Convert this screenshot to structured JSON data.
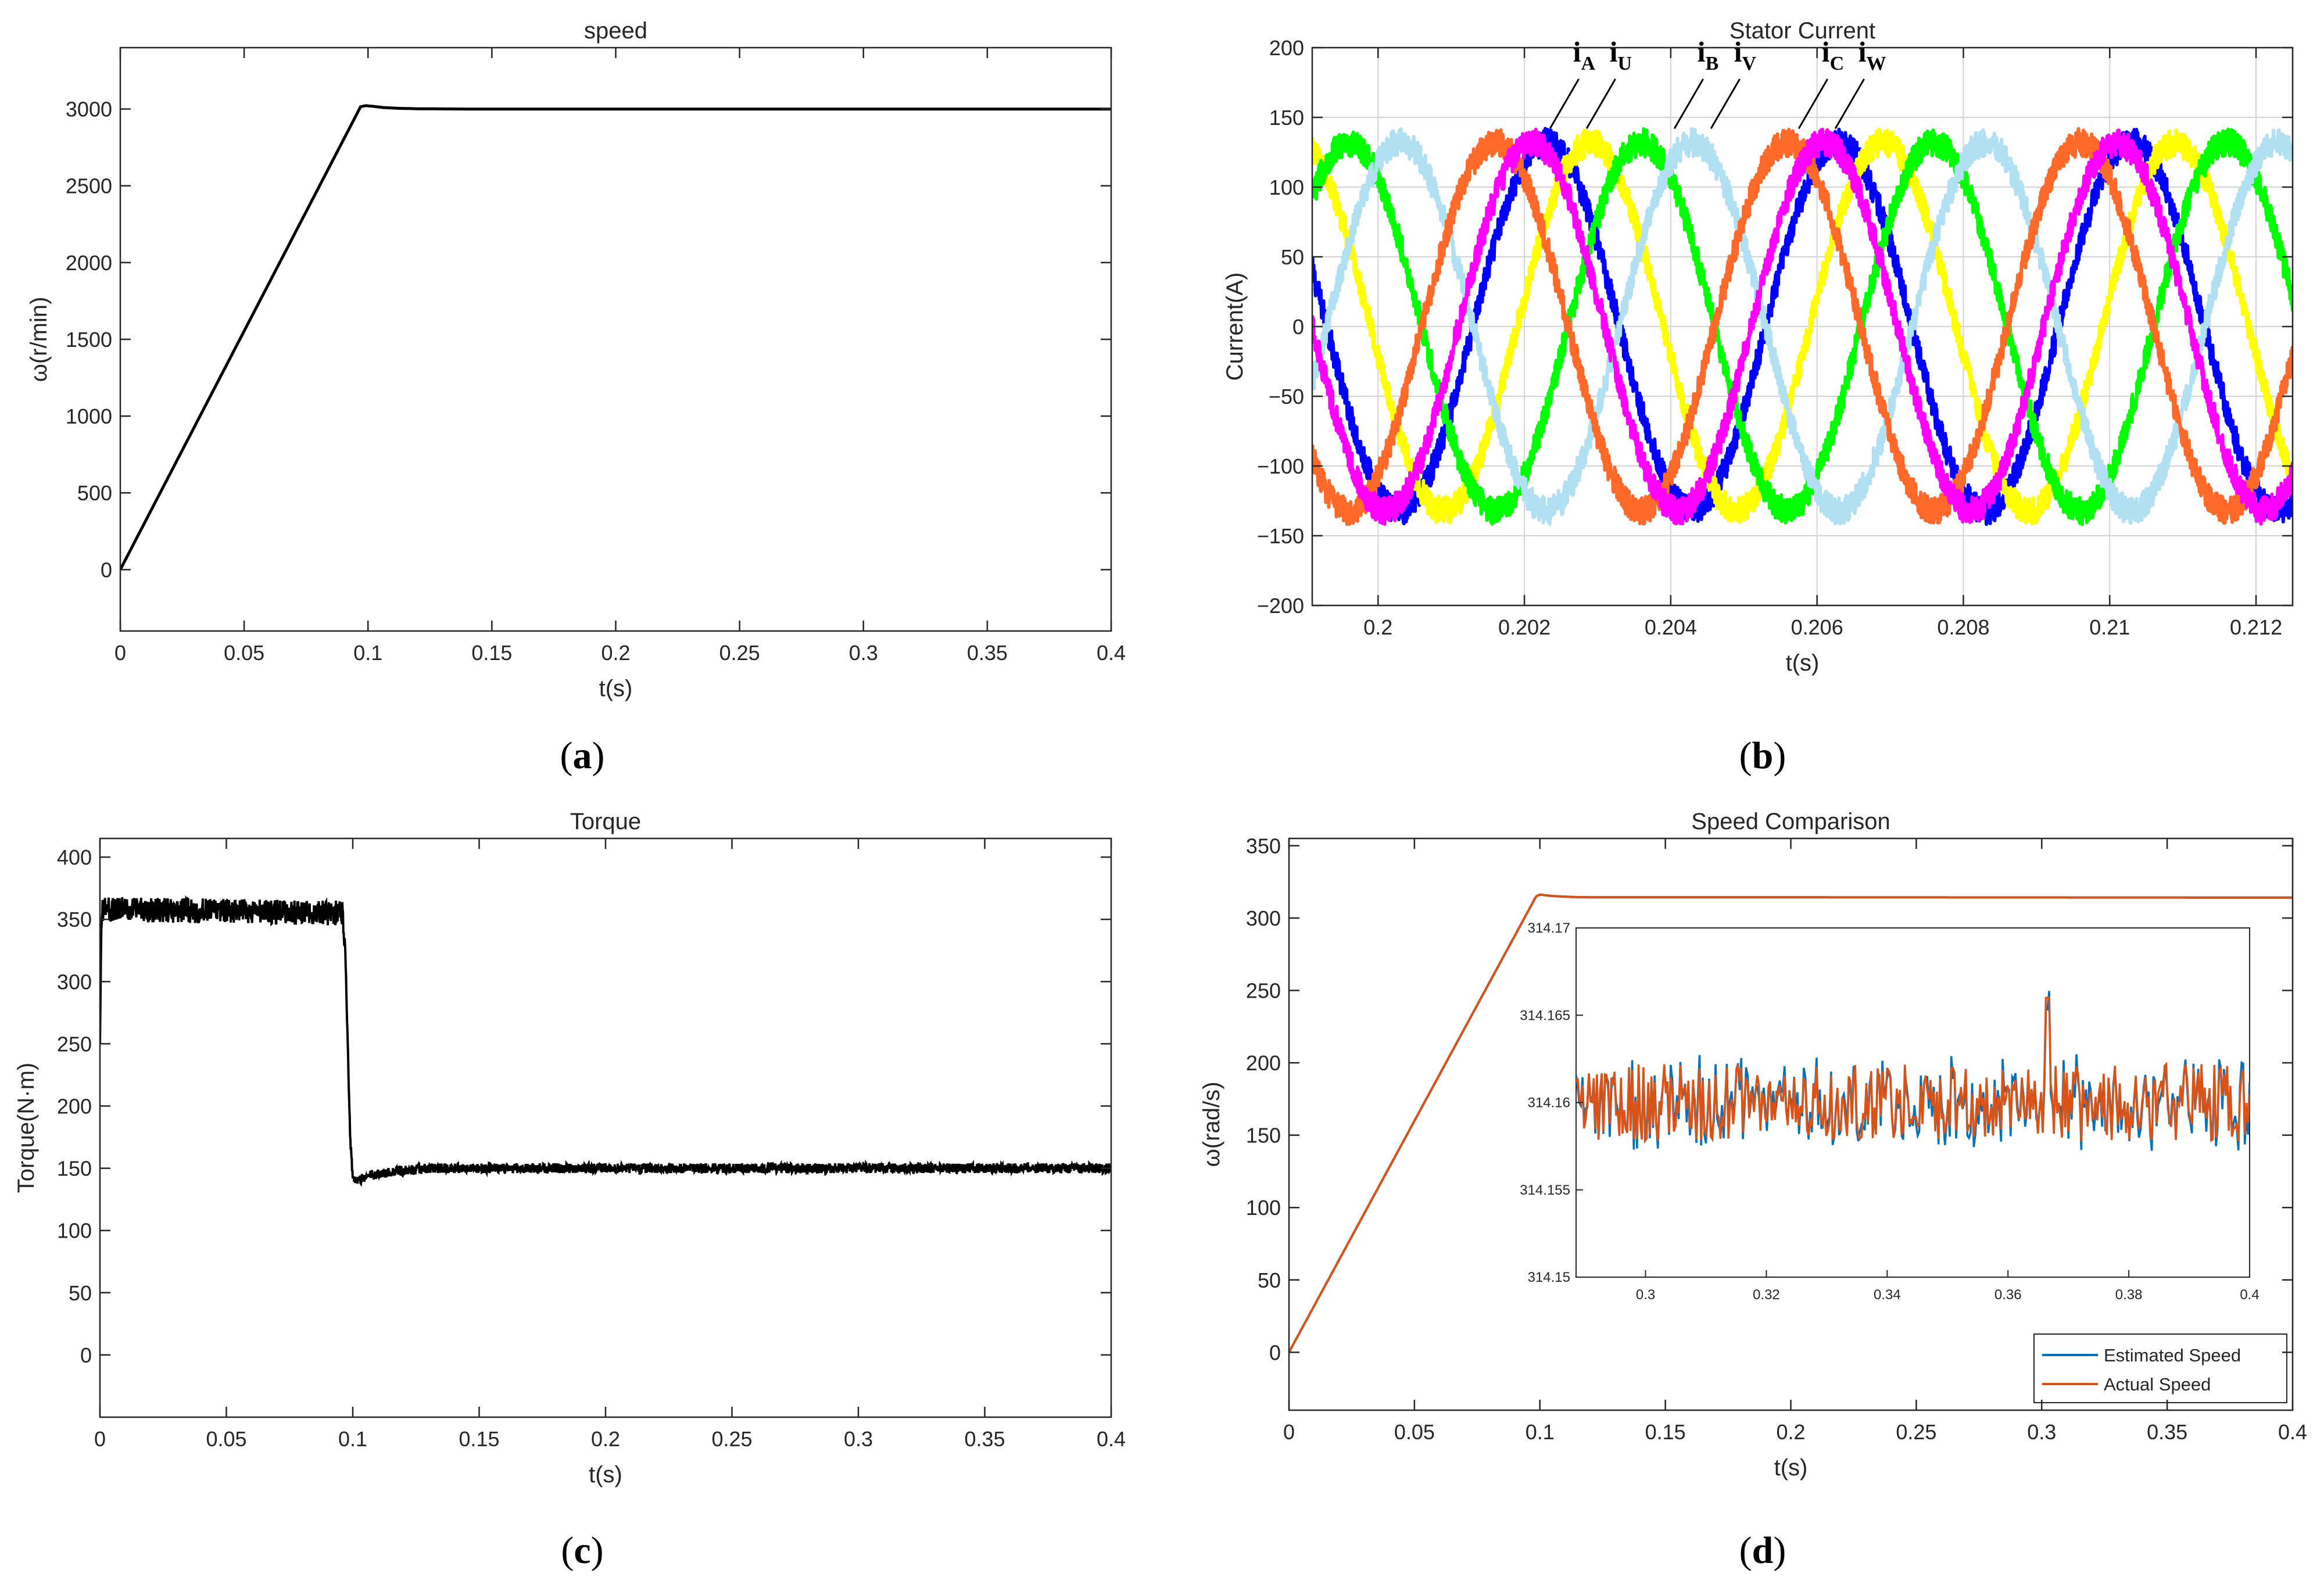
{
  "colors": {
    "axis": "#262626",
    "grid": "#d4d4d4",
    "black_trace": "#000000",
    "iA": "#0000ff",
    "iU": "#ffff00",
    "iB": "#00ff00",
    "iV": "#b0e0f2",
    "iC": "#ff6a2a",
    "iW": "#ff00ff",
    "estimated": "#0072bd",
    "actual": "#d95319"
  },
  "chart_data": [
    {
      "id": "a",
      "type": "line",
      "title": "speed",
      "xlabel": "t(s)",
      "ylabel": "ω(r/min)",
      "caption": "a",
      "xlim": [
        0,
        0.4
      ],
      "ylim": [
        -400,
        3400
      ],
      "xticks": [
        0,
        0.05,
        0.1,
        0.15,
        0.2,
        0.25,
        0.3,
        0.35,
        0.4
      ],
      "xtick_labels": [
        "0",
        "0.05",
        "0.1",
        "0.15",
        "0.2",
        "0.25",
        "0.3",
        "0.35",
        "0.4"
      ],
      "yticks": [
        0,
        500,
        1000,
        1500,
        2000,
        2500,
        3000
      ],
      "ytick_labels": [
        "0",
        "500",
        "1000",
        "1500",
        "2000",
        "2500",
        "3000"
      ],
      "grid": false,
      "series": [
        {
          "name": "speed",
          "color": "#000000",
          "x": [
            0,
            0.097,
            0.099,
            0.102,
            0.106,
            0.112,
            0.12,
            0.14,
            0.4
          ],
          "y": [
            0,
            3015,
            3022,
            3018,
            3010,
            3005,
            3002,
            3000,
            3000
          ]
        }
      ]
    },
    {
      "id": "b",
      "type": "line",
      "title": "Stator Current",
      "xlabel": "t(s)",
      "ylabel": "Current(A)",
      "caption": "b",
      "xlim": [
        0.1991,
        0.2125
      ],
      "ylim": [
        -200,
        200
      ],
      "xticks": [
        0.2,
        0.202,
        0.204,
        0.206,
        0.208,
        0.21,
        0.212
      ],
      "xtick_labels": [
        "0.2",
        "0.202",
        "0.204",
        "0.206",
        "0.208",
        "0.21",
        "0.212"
      ],
      "yticks": [
        -200,
        -150,
        -100,
        -50,
        0,
        50,
        100,
        150,
        200
      ],
      "ytick_labels": [
        "−200",
        "−150",
        "−100",
        "−50",
        "0",
        "50",
        "100",
        "150",
        "200"
      ],
      "grid": true,
      "amplitude": 132,
      "ripple": 10,
      "period": 0.004,
      "series": [
        {
          "name": "iA",
          "color": "#0000ff",
          "peak_time": 0.2023
        },
        {
          "name": "iU",
          "color": "#ffff00",
          "peak_time": 0.2029
        },
        {
          "name": "iB",
          "color": "#00ff00",
          "peak_time": 0.2036
        },
        {
          "name": "iV",
          "color": "#b0e0f2",
          "peak_time": 0.2043
        },
        {
          "name": "iC",
          "color": "#ff6a2a",
          "peak_time": 0.2056
        },
        {
          "name": "iW",
          "color": "#ff00ff",
          "peak_time": 0.2061
        }
      ],
      "annotations": [
        {
          "main": "i",
          "sub": "A",
          "t": 0.2026
        },
        {
          "main": "i",
          "sub": "U",
          "t": 0.2031
        },
        {
          "main": "i",
          "sub": "B",
          "t": 0.2043
        },
        {
          "main": "i",
          "sub": "V",
          "t": 0.2048
        },
        {
          "main": "i",
          "sub": "C",
          "t": 0.206
        },
        {
          "main": "i",
          "sub": "W",
          "t": 0.2065
        }
      ]
    },
    {
      "id": "c",
      "type": "line",
      "title": "Torque",
      "xlabel": "t(s)",
      "ylabel": "Torque(N·m)",
      "caption": "c",
      "xlim": [
        0,
        0.4
      ],
      "ylim": [
        -50,
        415
      ],
      "xticks": [
        0,
        0.05,
        0.1,
        0.15,
        0.2,
        0.25,
        0.3,
        0.35,
        0.4
      ],
      "xtick_labels": [
        "0",
        "0.05",
        "0.1",
        "0.15",
        "0.2",
        "0.25",
        "0.3",
        "0.35",
        "0.4"
      ],
      "yticks": [
        0,
        50,
        100,
        150,
        200,
        250,
        300,
        350,
        400
      ],
      "ytick_labels": [
        "0",
        "50",
        "100",
        "150",
        "200",
        "250",
        "300",
        "350",
        "400"
      ],
      "grid": false,
      "series": [
        {
          "name": "torque",
          "color": "#000000",
          "x": [
            0,
            0.0005,
            0.001,
            0.096,
            0.097,
            0.098,
            0.099,
            0.1,
            0.102,
            0.106,
            0.115,
            0.13,
            0.4
          ],
          "y": [
            250,
            340,
            358,
            355,
            330,
            250,
            175,
            142,
            140,
            144,
            147,
            150,
            150
          ],
          "noise_before": 10,
          "noise_after": 4,
          "switch_time": 0.097
        }
      ]
    },
    {
      "id": "d",
      "type": "line",
      "title": "Speed Comparison",
      "xlabel": "t(s)",
      "ylabel": "ω(rad/s)",
      "caption": "d",
      "xlim": [
        0,
        0.4
      ],
      "ylim": [
        -40,
        355
      ],
      "xticks": [
        0,
        0.05,
        0.1,
        0.15,
        0.2,
        0.25,
        0.3,
        0.35,
        0.4
      ],
      "xtick_labels": [
        "0",
        "0.05",
        "0.1",
        "0.15",
        "0.2",
        "0.25",
        "0.3",
        "0.35",
        "0.4"
      ],
      "yticks": [
        0,
        50,
        100,
        150,
        200,
        250,
        300,
        350
      ],
      "ytick_labels": [
        "0",
        "50",
        "100",
        "150",
        "200",
        "250",
        "300",
        "350"
      ],
      "grid": false,
      "legend_position": "bottom-right",
      "series": [
        {
          "name": "Estimated Speed",
          "color": "#0072bd",
          "x": [
            0,
            0.0985,
            0.1,
            0.105,
            0.115,
            0.4
          ],
          "y": [
            0,
            315,
            316.2,
            315.2,
            314.4,
            314.16
          ]
        },
        {
          "name": "Actual Speed",
          "color": "#d95319",
          "x": [
            0,
            0.0985,
            0.1,
            0.105,
            0.115,
            0.4
          ],
          "y": [
            0,
            315,
            316.2,
            315.2,
            314.4,
            314.16
          ]
        }
      ],
      "inset": {
        "type": "line",
        "xlim": [
          0.2885,
          0.4
        ],
        "ylim": [
          314.15,
          314.17
        ],
        "xticks": [
          0.3,
          0.32,
          0.34,
          0.36,
          0.38,
          0.4
        ],
        "xtick_labels": [
          "0.3",
          "0.32",
          "0.34",
          "0.36",
          "0.38",
          "0.4"
        ],
        "yticks": [
          314.15,
          314.155,
          314.16,
          314.165,
          314.17
        ],
        "ytick_labels": [
          "314.15",
          "314.155",
          "314.16",
          "314.165",
          "314.17"
        ],
        "mean": 314.16,
        "noise": 0.0022,
        "spike_time": 0.3665,
        "spike_value": 314.166
      }
    }
  ]
}
